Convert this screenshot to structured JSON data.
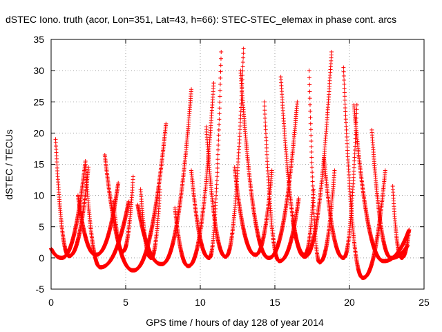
{
  "chart_data": {
    "type": "scatter",
    "title": "dSTEC Iono. truth (acor, Lon=351, Lat=43, h=66): STEC-STEC_elemax in phase cont. arcs",
    "xlabel": "GPS time / hours of day 128 of year 2014",
    "ylabel": "dSTEC  / TECUs",
    "xlim": [
      0,
      25
    ],
    "ylim": [
      -5,
      35
    ],
    "x_ticks": [
      "0",
      "5",
      "10",
      "15",
      "20",
      "25"
    ],
    "y_ticks": [
      "-5",
      "0",
      "5",
      "10",
      "15",
      "20",
      "25",
      "30",
      "35"
    ],
    "grid": true,
    "marker": "+",
    "color": "#ff0000",
    "series": [
      {
        "arcs": [
          {
            "start": 0.0,
            "min": 0.7,
            "end": 2.3,
            "minval": 0.0,
            "startval": 1.5,
            "endval": 15.5
          },
          {
            "start": 2.3,
            "min": 3.3,
            "end": 5.2,
            "minval": -1.5,
            "startval": 15.0,
            "endval": 9.0
          },
          {
            "start": 3.6,
            "min": 5.5,
            "end": 7.7,
            "minval": -2.0,
            "startval": 16.5,
            "endval": 21.5
          },
          {
            "start": 5.8,
            "min": 7.4,
            "end": 9.4,
            "minval": -1.0,
            "startval": 8.5,
            "endval": 27.0
          },
          {
            "start": 8.3,
            "min": 9.2,
            "end": 10.9,
            "minval": -1.3,
            "startval": 8.0,
            "endval": 28.0
          },
          {
            "start": 9.4,
            "min": 10.6,
            "end": 11.4,
            "minval": 0.0,
            "startval": 14.0,
            "endval": 33.0
          },
          {
            "start": 10.4,
            "min": 11.7,
            "end": 12.9,
            "minval": 0.2,
            "startval": 21.0,
            "endval": 33.5
          },
          {
            "start": 12.7,
            "min": 14.6,
            "end": 16.5,
            "minval": 0.0,
            "startval": 30.0,
            "endval": 25.0
          },
          {
            "start": 14.3,
            "min": 15.3,
            "end": 16.6,
            "minval": -0.5,
            "startval": 25.0,
            "endval": 9.5
          },
          {
            "start": 15.4,
            "min": 17.0,
            "end": 18.8,
            "minval": 0.2,
            "startval": 29.0,
            "endval": 33.0
          },
          {
            "start": 17.3,
            "min": 18.0,
            "end": 19.0,
            "minval": -0.7,
            "startval": 30.0,
            "endval": 14.0
          },
          {
            "start": 18.3,
            "min": 19.6,
            "end": 20.5,
            "minval": 0.0,
            "startval": 16.0,
            "endval": 24.5
          },
          {
            "start": 19.6,
            "min": 20.9,
            "end": 22.4,
            "minval": -3.2,
            "startval": 30.5,
            "endval": 14.0
          },
          {
            "start": 20.3,
            "min": 22.3,
            "end": 24.0,
            "minval": -0.5,
            "startval": 24.5,
            "endval": 4.5
          },
          {
            "start": 21.5,
            "min": 22.8,
            "end": 23.9,
            "minval": 0.0,
            "startval": 20.5,
            "endval": 2.0
          },
          {
            "start": 22.9,
            "min": 23.5,
            "end": 24.0,
            "minval": 0.0,
            "startval": 11.5,
            "endval": 4.5
          },
          {
            "start": 0.3,
            "min": 1.2,
            "end": 2.5,
            "minval": 0.3,
            "startval": 19.0,
            "endval": 14.5
          },
          {
            "start": 1.8,
            "min": 3.0,
            "end": 4.5,
            "minval": 0.5,
            "startval": 10.0,
            "endval": 12.0
          },
          {
            "start": 4.2,
            "min": 4.8,
            "end": 5.5,
            "minval": 1.0,
            "startval": 9.0,
            "endval": 13.0
          },
          {
            "start": 6.0,
            "min": 6.7,
            "end": 7.3,
            "minval": 0.0,
            "startval": 11.0,
            "endval": 11.0
          },
          {
            "start": 12.3,
            "min": 13.7,
            "end": 14.8,
            "minval": 0.5,
            "startval": 14.5,
            "endval": 14.0
          },
          {
            "start": 16.2,
            "min": 17.0,
            "end": 17.6,
            "minval": 0.5,
            "startval": 6.0,
            "endval": 11.0
          }
        ]
      }
    ]
  }
}
